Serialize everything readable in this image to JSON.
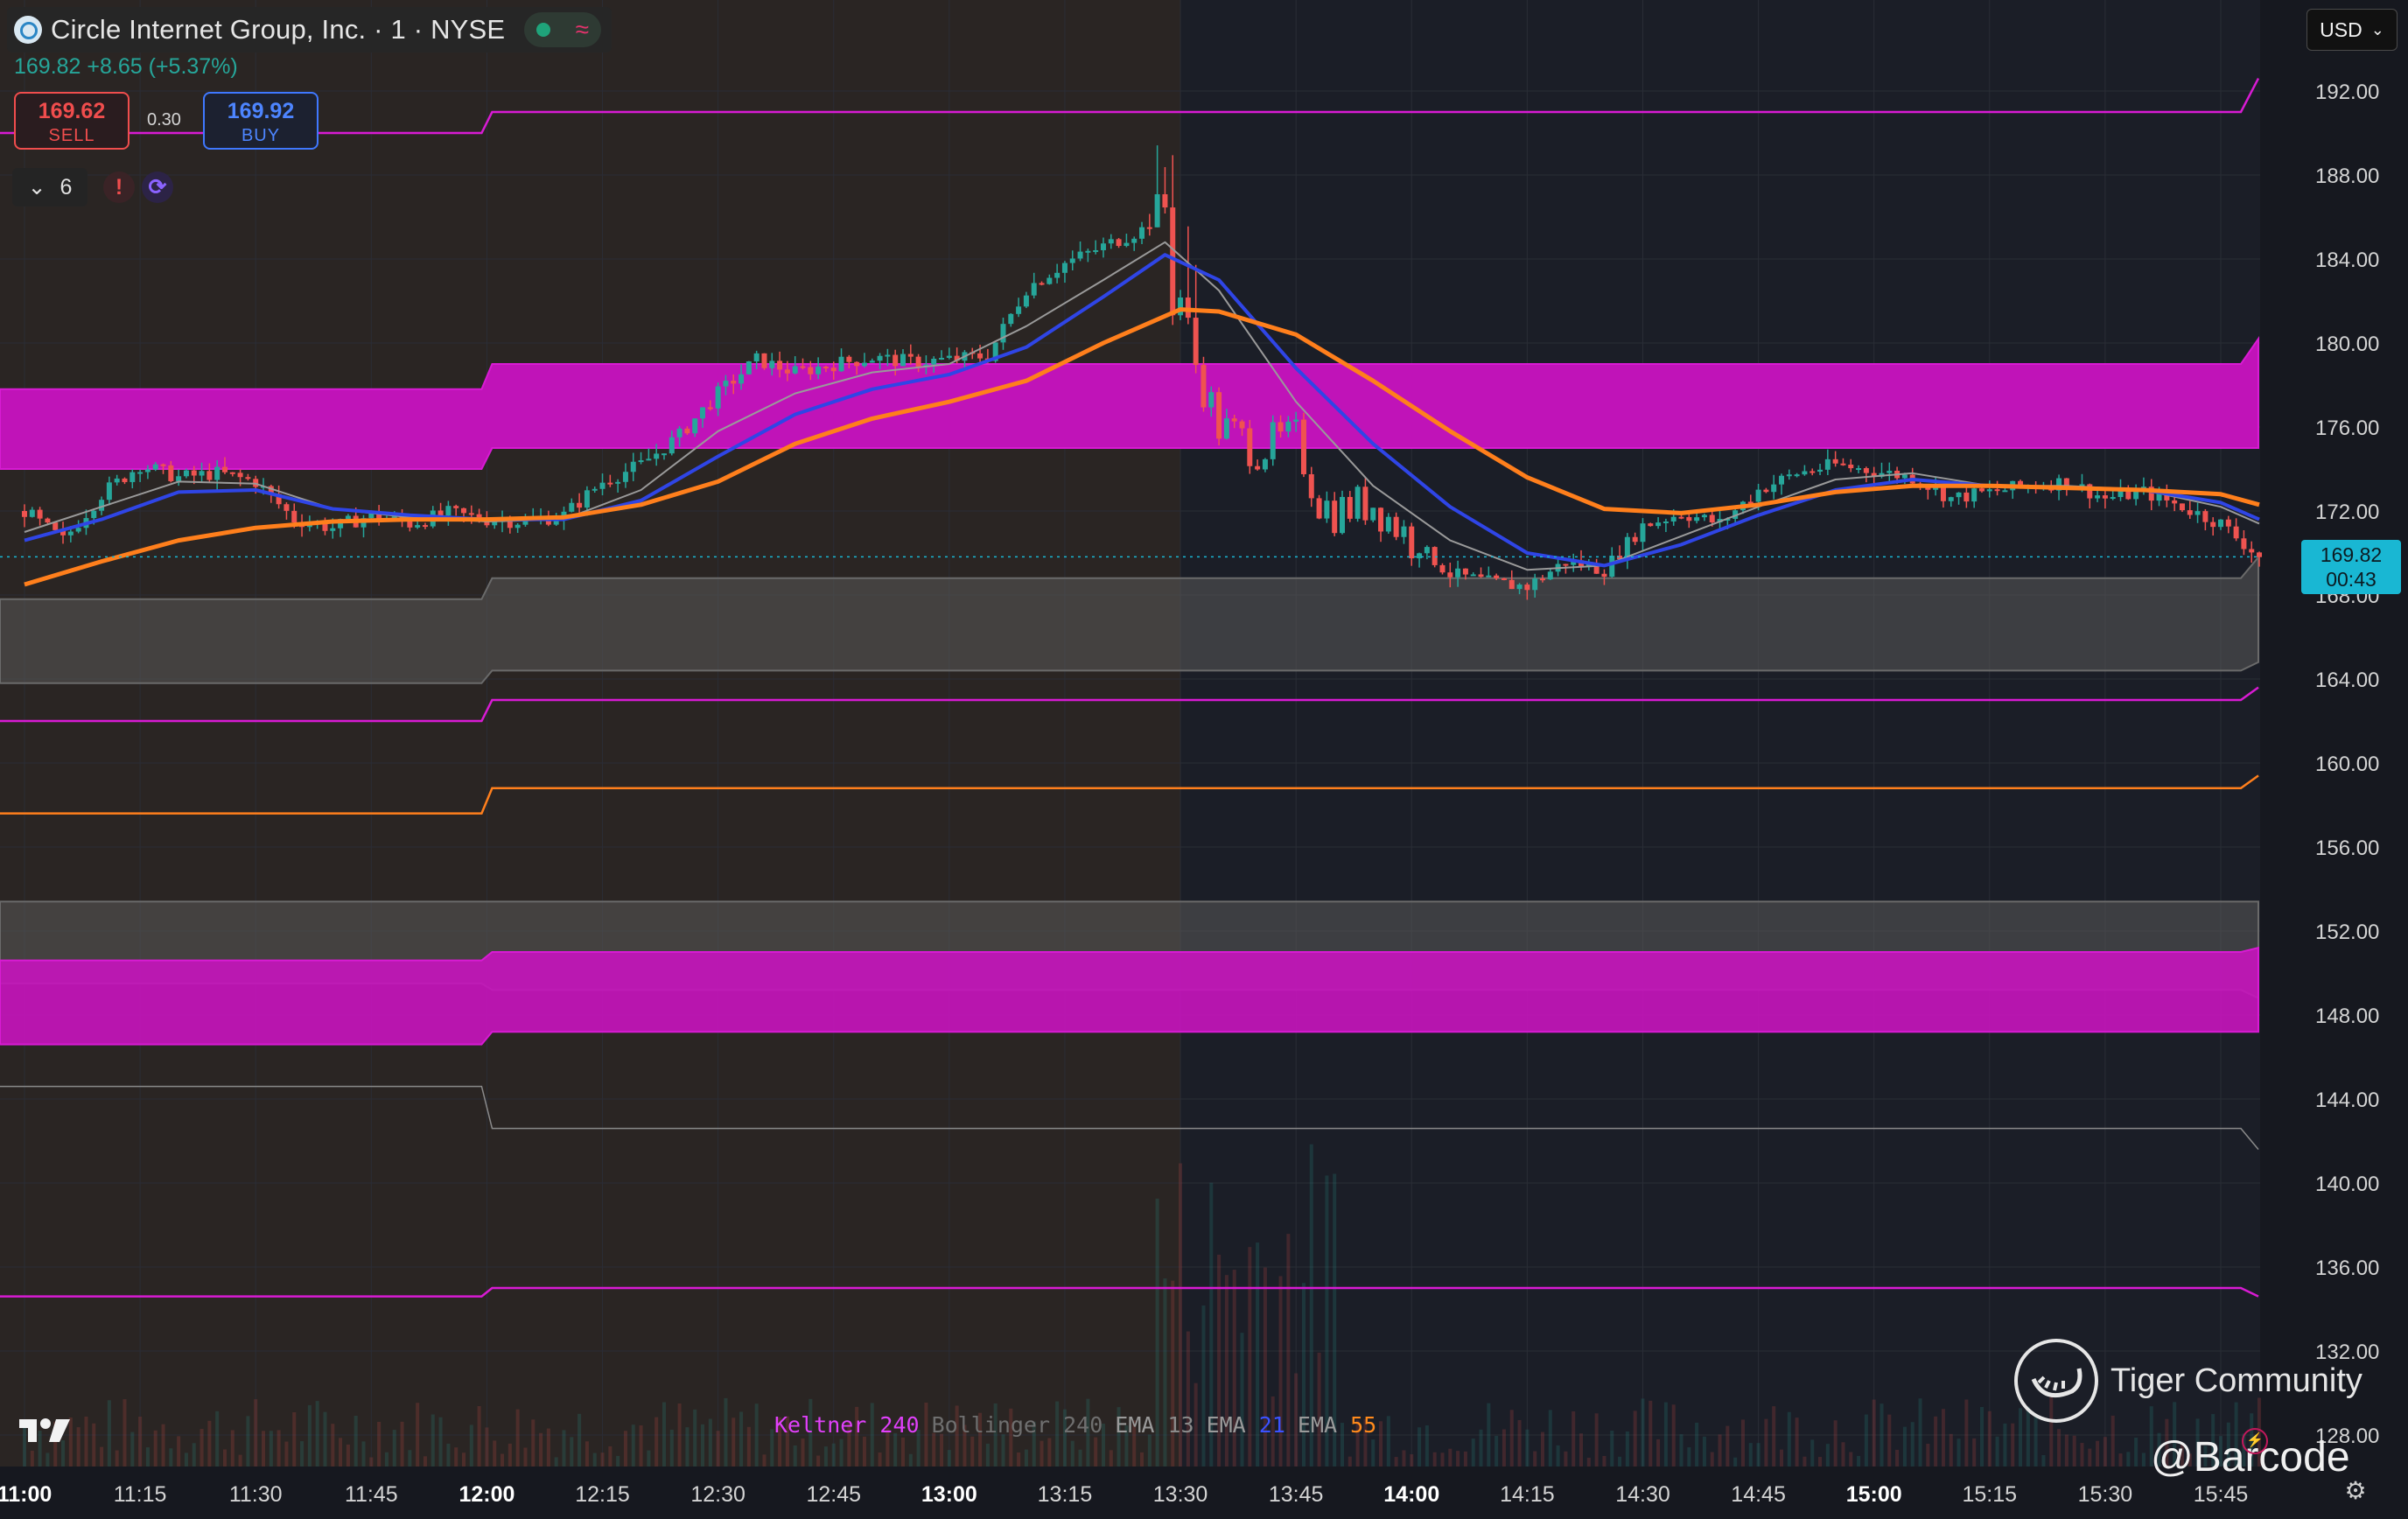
{
  "symbol": {
    "name": "Circle Internet Group, Inc. · 1 · NYSE",
    "price": "169.82",
    "change": "+8.65 (+5.37%)"
  },
  "trade": {
    "sell_price": "169.62",
    "sell_label": "SELL",
    "buy_price": "169.92",
    "buy_label": "BUY",
    "spread": "0.30"
  },
  "indicators_toggle": {
    "count": "6"
  },
  "currency": "USD",
  "last_price_tag": {
    "price": "169.82",
    "countdown": "00:43"
  },
  "indicator_legend": [
    {
      "name": "Keltner",
      "param": "240",
      "name_color": "#e040fb",
      "param_color": "#e040fb"
    },
    {
      "name": "Bollinger",
      "param": "240",
      "name_color": "#6f6f6f",
      "param_color": "#6f6f6f"
    },
    {
      "name": "EMA",
      "param": "13",
      "name_color": "#9a9a9a",
      "param_color": "#8a8a8a"
    },
    {
      "name": "EMA",
      "param": "21",
      "name_color": "#9a9a9a",
      "param_color": "#3b52ff"
    },
    {
      "name": "EMA",
      "param": "55",
      "name_color": "#9a9a9a",
      "param_color": "#ff8a1c"
    }
  ],
  "watermark": {
    "brand": "Tiger Community",
    "handle": "@Barcode"
  },
  "colors": {
    "up": "#26a69a",
    "down": "#ef5350",
    "ema13": "#9a9a9a",
    "ema21": "#2f45e6",
    "ema55": "#ff7f1c",
    "keltner": "#d81bd3",
    "bollinger": "#6a6a6a",
    "session_pre": "#2a2523",
    "session_main": "#1b1e27",
    "axis_text": "#d4d4d4"
  },
  "chart_data": {
    "type": "candlestick",
    "ylim": [
      126,
      194
    ],
    "yticks": [
      "192.00",
      "188.00",
      "184.00",
      "180.00",
      "176.00",
      "172.00",
      "168.00",
      "164.00",
      "160.00",
      "156.00",
      "152.00",
      "148.00",
      "144.00",
      "140.00",
      "136.00",
      "132.00",
      "128.00"
    ],
    "xticks": [
      {
        "label": "11:00",
        "bold": true
      },
      {
        "label": "11:15",
        "bold": false
      },
      {
        "label": "11:30",
        "bold": false
      },
      {
        "label": "11:45",
        "bold": false
      },
      {
        "label": "12:00",
        "bold": true
      },
      {
        "label": "12:15",
        "bold": false
      },
      {
        "label": "12:30",
        "bold": false
      },
      {
        "label": "12:45",
        "bold": false
      },
      {
        "label": "13:00",
        "bold": true
      },
      {
        "label": "13:15",
        "bold": false
      },
      {
        "label": "13:30",
        "bold": false
      },
      {
        "label": "13:45",
        "bold": false
      },
      {
        "label": "14:00",
        "bold": true
      },
      {
        "label": "14:15",
        "bold": false
      },
      {
        "label": "14:30",
        "bold": false
      },
      {
        "label": "14:45",
        "bold": false
      },
      {
        "label": "15:00",
        "bold": true
      },
      {
        "label": "15:15",
        "bold": false
      },
      {
        "label": "15:30",
        "bold": false
      },
      {
        "label": "15:45",
        "bold": false
      }
    ],
    "session_split_time": "13:30",
    "price_path": [
      [
        "11:00",
        172.0
      ],
      [
        "11:05",
        170.6
      ],
      [
        "11:10",
        172.8
      ],
      [
        "11:15",
        174.2
      ],
      [
        "11:20",
        173.6
      ],
      [
        "11:25",
        173.8
      ],
      [
        "11:30",
        173.4
      ],
      [
        "11:35",
        171.6
      ],
      [
        "11:40",
        171.2
      ],
      [
        "11:45",
        171.8
      ],
      [
        "11:50",
        171.4
      ],
      [
        "11:55",
        171.9
      ],
      [
        "12:00",
        171.6
      ],
      [
        "12:05",
        171.5
      ],
      [
        "12:10",
        171.8
      ],
      [
        "12:15",
        173.4
      ],
      [
        "12:20",
        174.2
      ],
      [
        "12:25",
        175.6
      ],
      [
        "12:30",
        177.6
      ],
      [
        "12:35",
        179.2
      ],
      [
        "12:40",
        178.6
      ],
      [
        "12:45",
        179.0
      ],
      [
        "12:50",
        179.3
      ],
      [
        "12:55",
        179.1
      ],
      [
        "13:00",
        179.2
      ],
      [
        "13:05",
        179.4
      ],
      [
        "13:10",
        182.6
      ],
      [
        "13:15",
        183.8
      ],
      [
        "13:20",
        184.6
      ],
      [
        "13:25",
        185.4
      ],
      [
        "13:28",
        186.5
      ],
      [
        "13:29",
        182.0
      ],
      [
        "13:30",
        182.2
      ],
      [
        "13:32",
        179.0
      ],
      [
        "13:35",
        176.0
      ],
      [
        "13:40",
        175.0
      ],
      [
        "13:45",
        175.4
      ],
      [
        "13:48",
        172.5
      ],
      [
        "13:50",
        172.0
      ],
      [
        "13:55",
        172.4
      ],
      [
        "14:00",
        170.6
      ],
      [
        "14:05",
        169.0
      ],
      [
        "14:10",
        168.6
      ],
      [
        "14:15",
        168.4
      ],
      [
        "14:20",
        169.6
      ],
      [
        "14:25",
        169.2
      ],
      [
        "14:30",
        171.3
      ],
      [
        "14:35",
        171.9
      ],
      [
        "14:40",
        171.4
      ],
      [
        "14:45",
        173.0
      ],
      [
        "14:50",
        173.8
      ],
      [
        "14:55",
        174.2
      ],
      [
        "15:00",
        173.9
      ],
      [
        "15:05",
        173.6
      ],
      [
        "15:10",
        172.6
      ],
      [
        "15:15",
        172.9
      ],
      [
        "15:20",
        173.2
      ],
      [
        "15:25",
        173.4
      ],
      [
        "15:30",
        172.6
      ],
      [
        "15:35",
        172.9
      ],
      [
        "15:40",
        172.2
      ],
      [
        "15:45",
        171.4
      ],
      [
        "15:50",
        169.82
      ]
    ],
    "ema13": [
      [
        "11:00",
        171.0
      ],
      [
        "11:10",
        172.2
      ],
      [
        "11:20",
        173.4
      ],
      [
        "11:30",
        173.3
      ],
      [
        "11:40",
        172.1
      ],
      [
        "11:50",
        171.7
      ],
      [
        "12:00",
        171.5
      ],
      [
        "12:10",
        171.6
      ],
      [
        "12:20",
        173.0
      ],
      [
        "12:30",
        175.8
      ],
      [
        "12:40",
        177.6
      ],
      [
        "12:50",
        178.6
      ],
      [
        "13:00",
        179.0
      ],
      [
        "13:10",
        180.8
      ],
      [
        "13:20",
        183.0
      ],
      [
        "13:28",
        184.8
      ],
      [
        "13:35",
        182.5
      ],
      [
        "13:45",
        177.2
      ],
      [
        "13:55",
        173.2
      ],
      [
        "14:05",
        170.6
      ],
      [
        "14:15",
        169.2
      ],
      [
        "14:25",
        169.4
      ],
      [
        "14:35",
        170.8
      ],
      [
        "14:45",
        172.2
      ],
      [
        "14:55",
        173.5
      ],
      [
        "15:05",
        173.8
      ],
      [
        "15:15",
        173.2
      ],
      [
        "15:25",
        173.2
      ],
      [
        "15:35",
        173.0
      ],
      [
        "15:45",
        172.2
      ],
      [
        "15:50",
        171.4
      ]
    ],
    "ema21": [
      [
        "11:00",
        170.6
      ],
      [
        "11:10",
        171.6
      ],
      [
        "11:20",
        172.9
      ],
      [
        "11:30",
        173.0
      ],
      [
        "11:40",
        172.1
      ],
      [
        "11:50",
        171.8
      ],
      [
        "12:00",
        171.6
      ],
      [
        "12:10",
        171.6
      ],
      [
        "12:20",
        172.5
      ],
      [
        "12:30",
        174.6
      ],
      [
        "12:40",
        176.6
      ],
      [
        "12:50",
        177.8
      ],
      [
        "13:00",
        178.5
      ],
      [
        "13:10",
        179.8
      ],
      [
        "13:20",
        182.2
      ],
      [
        "13:28",
        184.2
      ],
      [
        "13:35",
        183.0
      ],
      [
        "13:45",
        178.8
      ],
      [
        "13:55",
        175.2
      ],
      [
        "14:05",
        172.2
      ],
      [
        "14:15",
        170.0
      ],
      [
        "14:25",
        169.4
      ],
      [
        "14:35",
        170.4
      ],
      [
        "14:45",
        171.8
      ],
      [
        "14:55",
        173.0
      ],
      [
        "15:05",
        173.5
      ],
      [
        "15:15",
        173.2
      ],
      [
        "15:25",
        173.1
      ],
      [
        "15:35",
        173.0
      ],
      [
        "15:45",
        172.4
      ],
      [
        "15:50",
        171.6
      ]
    ],
    "ema55": [
      [
        "11:00",
        168.5
      ],
      [
        "11:10",
        169.6
      ],
      [
        "11:20",
        170.6
      ],
      [
        "11:30",
        171.2
      ],
      [
        "11:40",
        171.5
      ],
      [
        "11:50",
        171.6
      ],
      [
        "12:00",
        171.6
      ],
      [
        "12:10",
        171.7
      ],
      [
        "12:20",
        172.3
      ],
      [
        "12:30",
        173.4
      ],
      [
        "12:40",
        175.2
      ],
      [
        "12:50",
        176.4
      ],
      [
        "13:00",
        177.2
      ],
      [
        "13:10",
        178.2
      ],
      [
        "13:20",
        180.0
      ],
      [
        "13:30",
        181.6
      ],
      [
        "13:35",
        181.5
      ],
      [
        "13:45",
        180.4
      ],
      [
        "13:55",
        178.2
      ],
      [
        "14:05",
        175.8
      ],
      [
        "14:15",
        173.6
      ],
      [
        "14:25",
        172.1
      ],
      [
        "14:35",
        171.9
      ],
      [
        "14:45",
        172.3
      ],
      [
        "14:55",
        172.9
      ],
      [
        "15:05",
        173.2
      ],
      [
        "15:15",
        173.2
      ],
      [
        "15:25",
        173.1
      ],
      [
        "15:35",
        173.0
      ],
      [
        "15:45",
        172.8
      ],
      [
        "15:50",
        172.3
      ]
    ],
    "bands": {
      "step_time": "12:00",
      "outer_top_line": [
        190.0,
        191.0,
        192.6
      ],
      "keltner_upper_fill": [
        [
          174.0,
          177.8
        ],
        [
          175.0,
          179.0
        ],
        [
          175.0,
          180.2
        ]
      ],
      "bollinger_upper_fill": [
        [
          163.8,
          167.8
        ],
        [
          164.4,
          168.8
        ],
        [
          164.8,
          169.8
        ]
      ],
      "keltner_line_a": [
        162.0,
        163.0,
        163.6
      ],
      "orange_line": [
        157.6,
        158.8,
        159.4
      ],
      "bollinger_lower_fill": [
        [
          149.5,
          153.4
        ],
        [
          149.2,
          153.4
        ],
        [
          148.8,
          153.4
        ]
      ],
      "keltner_lower_fill": [
        [
          146.6,
          150.6
        ],
        [
          147.2,
          151.0
        ],
        [
          147.2,
          151.2
        ]
      ],
      "gray_line_low": [
        144.6,
        142.6,
        141.6
      ],
      "keltner_bottom_line": [
        134.6,
        135.0,
        134.6
      ]
    }
  }
}
